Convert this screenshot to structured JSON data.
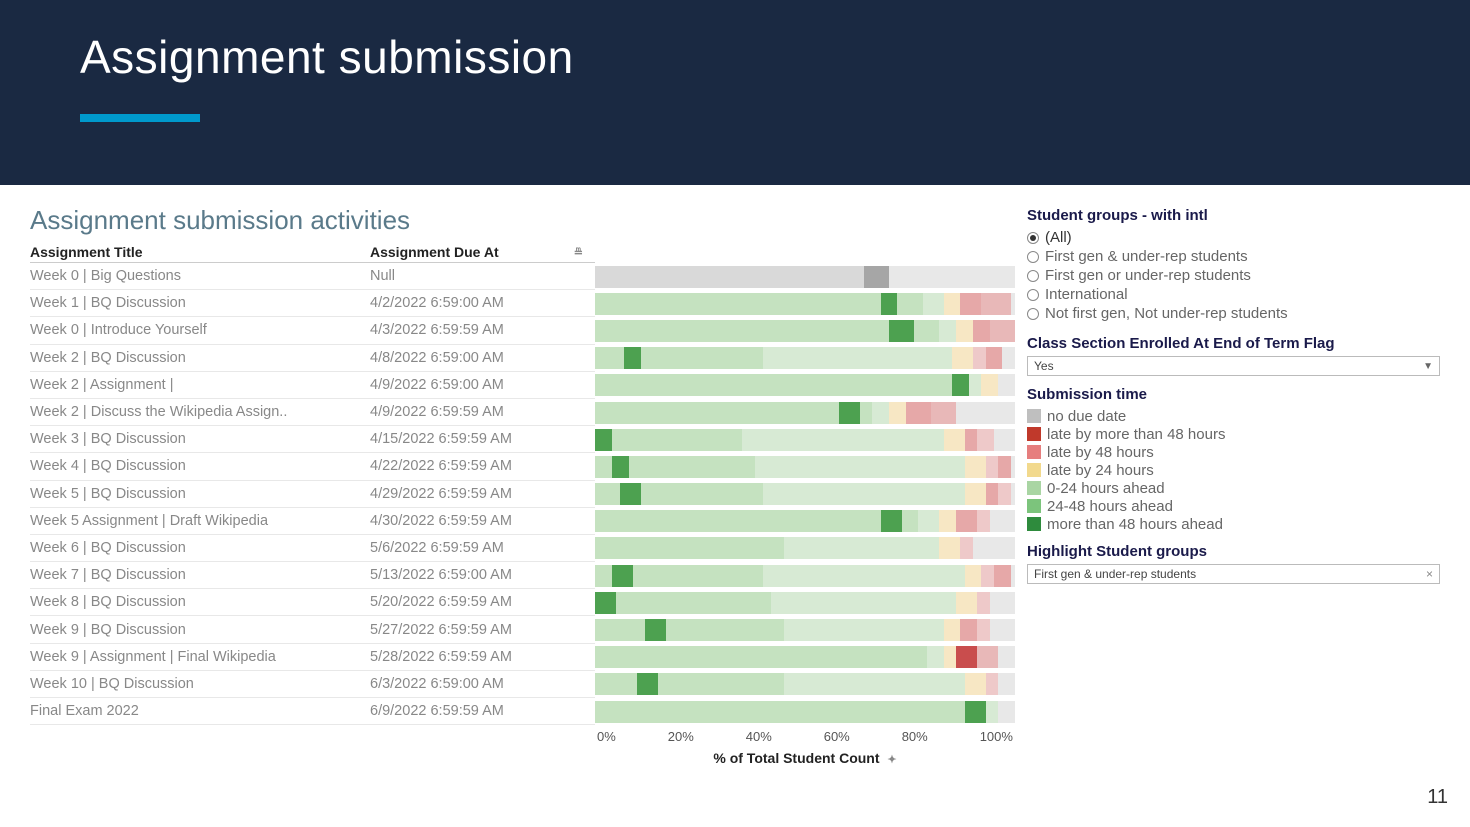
{
  "header": {
    "title": "Assignment submission",
    "accent_color": "#0099cc",
    "bg_color": "#1a2942"
  },
  "chart": {
    "title": "Assignment submission activities",
    "col1_header": "Assignment Title",
    "col2_header": "Assignment Due At",
    "axis_label": "% of Total Student Count",
    "x_ticks": [
      "0%",
      "20%",
      "40%",
      "60%",
      "80%",
      "100%"
    ],
    "track_bg": "#e8e8e8",
    "rows": [
      {
        "title": "Week 0 | Big Questions",
        "due": "Null",
        "segments": [
          {
            "key": "no_due",
            "start": 0,
            "end": 64
          },
          {
            "key": "no_due_dark",
            "start": 64,
            "end": 70
          }
        ]
      },
      {
        "title": "Week 1 | BQ Discussion",
        "due": "4/2/2022 6:59:00 AM",
        "segments": [
          {
            "key": "more48",
            "start": 0,
            "end": 68
          },
          {
            "key": "hi_more48",
            "start": 68,
            "end": 72
          },
          {
            "key": "a2448",
            "start": 72,
            "end": 78
          },
          {
            "key": "a024",
            "start": 78,
            "end": 83
          },
          {
            "key": "late24",
            "start": 83,
            "end": 87
          },
          {
            "key": "hi_late",
            "start": 87,
            "end": 92
          },
          {
            "key": "late48p",
            "start": 92,
            "end": 99
          }
        ]
      },
      {
        "title": "Week 0 | Introduce Yourself",
        "due": "4/3/2022 6:59:59 AM",
        "segments": [
          {
            "key": "more48",
            "start": 0,
            "end": 70
          },
          {
            "key": "hi_more48",
            "start": 70,
            "end": 76
          },
          {
            "key": "a2448",
            "start": 76,
            "end": 82
          },
          {
            "key": "a024",
            "start": 82,
            "end": 86
          },
          {
            "key": "late24",
            "start": 86,
            "end": 90
          },
          {
            "key": "hi_late",
            "start": 90,
            "end": 94
          },
          {
            "key": "late48p",
            "start": 94,
            "end": 100
          }
        ]
      },
      {
        "title": "Week 2 | BQ Discussion",
        "due": "4/8/2022 6:59:00 AM",
        "segments": [
          {
            "key": "more48",
            "start": 0,
            "end": 7
          },
          {
            "key": "hi_more48",
            "start": 7,
            "end": 11
          },
          {
            "key": "a2448",
            "start": 11,
            "end": 40
          },
          {
            "key": "a024",
            "start": 40,
            "end": 85
          },
          {
            "key": "late24",
            "start": 85,
            "end": 90
          },
          {
            "key": "late48",
            "start": 90,
            "end": 93
          },
          {
            "key": "hi_late",
            "start": 93,
            "end": 97
          }
        ]
      },
      {
        "title": "Week 2 | Assignment |",
        "due": "4/9/2022 6:59:00 AM",
        "segments": [
          {
            "key": "more48",
            "start": 0,
            "end": 85
          },
          {
            "key": "hi_more48",
            "start": 85,
            "end": 89
          },
          {
            "key": "a024",
            "start": 89,
            "end": 92
          },
          {
            "key": "late24",
            "start": 92,
            "end": 96
          }
        ]
      },
      {
        "title": "Week 2 | Discuss the Wikipedia Assign..",
        "due": "4/9/2022 6:59:59 AM",
        "segments": [
          {
            "key": "more48",
            "start": 0,
            "end": 58
          },
          {
            "key": "hi_more48",
            "start": 58,
            "end": 63
          },
          {
            "key": "a2448",
            "start": 63,
            "end": 66
          },
          {
            "key": "a024",
            "start": 66,
            "end": 70
          },
          {
            "key": "late24",
            "start": 70,
            "end": 74
          },
          {
            "key": "hi_late",
            "start": 74,
            "end": 80
          },
          {
            "key": "late48p",
            "start": 80,
            "end": 86
          }
        ]
      },
      {
        "title": "Week 3 | BQ Discussion",
        "due": "4/15/2022 6:59:59 AM",
        "segments": [
          {
            "key": "hi_more48",
            "start": 0,
            "end": 4
          },
          {
            "key": "more48",
            "start": 4,
            "end": 10
          },
          {
            "key": "a2448",
            "start": 10,
            "end": 35
          },
          {
            "key": "a024",
            "start": 35,
            "end": 83
          },
          {
            "key": "late24",
            "start": 83,
            "end": 88
          },
          {
            "key": "hi_late",
            "start": 88,
            "end": 91
          },
          {
            "key": "late48",
            "start": 91,
            "end": 95
          }
        ]
      },
      {
        "title": "Week 4 | BQ Discussion",
        "due": "4/22/2022 6:59:59 AM",
        "segments": [
          {
            "key": "more48",
            "start": 0,
            "end": 4
          },
          {
            "key": "hi_more48",
            "start": 4,
            "end": 8
          },
          {
            "key": "a2448",
            "start": 8,
            "end": 38
          },
          {
            "key": "a024",
            "start": 38,
            "end": 88
          },
          {
            "key": "late24",
            "start": 88,
            "end": 93
          },
          {
            "key": "late48",
            "start": 93,
            "end": 96
          },
          {
            "key": "hi_late",
            "start": 96,
            "end": 99
          }
        ]
      },
      {
        "title": "Week 5 | BQ Discussion",
        "due": "4/29/2022 6:59:59 AM",
        "segments": [
          {
            "key": "more48",
            "start": 0,
            "end": 6
          },
          {
            "key": "hi_more48",
            "start": 6,
            "end": 11
          },
          {
            "key": "a2448",
            "start": 11,
            "end": 40
          },
          {
            "key": "a024",
            "start": 40,
            "end": 88
          },
          {
            "key": "late24",
            "start": 88,
            "end": 93
          },
          {
            "key": "hi_late",
            "start": 93,
            "end": 96
          },
          {
            "key": "late48",
            "start": 96,
            "end": 99
          }
        ]
      },
      {
        "title": "Week 5 Assignment | Draft Wikipedia",
        "due": "4/30/2022 6:59:59 AM",
        "segments": [
          {
            "key": "more48",
            "start": 0,
            "end": 68
          },
          {
            "key": "hi_more48",
            "start": 68,
            "end": 73
          },
          {
            "key": "a2448",
            "start": 73,
            "end": 77
          },
          {
            "key": "a024",
            "start": 77,
            "end": 82
          },
          {
            "key": "late24",
            "start": 82,
            "end": 86
          },
          {
            "key": "hi_late",
            "start": 86,
            "end": 91
          },
          {
            "key": "late48",
            "start": 91,
            "end": 94
          }
        ]
      },
      {
        "title": "Week 6 | BQ Discussion",
        "due": "5/6/2022 6:59:59 AM",
        "segments": [
          {
            "key": "more48",
            "start": 0,
            "end": 15
          },
          {
            "key": "a2448",
            "start": 15,
            "end": 45
          },
          {
            "key": "a024",
            "start": 45,
            "end": 82
          },
          {
            "key": "late24",
            "start": 82,
            "end": 87
          },
          {
            "key": "late48",
            "start": 87,
            "end": 90
          }
        ]
      },
      {
        "title": "Week 7 | BQ Discussion",
        "due": "5/13/2022 6:59:00 AM",
        "segments": [
          {
            "key": "more48",
            "start": 0,
            "end": 4
          },
          {
            "key": "hi_more48",
            "start": 4,
            "end": 9
          },
          {
            "key": "a2448",
            "start": 9,
            "end": 40
          },
          {
            "key": "a024",
            "start": 40,
            "end": 88
          },
          {
            "key": "late24",
            "start": 88,
            "end": 92
          },
          {
            "key": "late48",
            "start": 92,
            "end": 95
          },
          {
            "key": "hi_late",
            "start": 95,
            "end": 99
          }
        ]
      },
      {
        "title": "Week 8 | BQ Discussion",
        "due": "5/20/2022 6:59:59 AM",
        "segments": [
          {
            "key": "hi_more48",
            "start": 0,
            "end": 5
          },
          {
            "key": "more48",
            "start": 5,
            "end": 12
          },
          {
            "key": "a2448",
            "start": 12,
            "end": 42
          },
          {
            "key": "a024",
            "start": 42,
            "end": 86
          },
          {
            "key": "late24",
            "start": 86,
            "end": 91
          },
          {
            "key": "late48",
            "start": 91,
            "end": 94
          }
        ]
      },
      {
        "title": "Week 9 | BQ Discussion",
        "due": "5/27/2022 6:59:59 AM",
        "segments": [
          {
            "key": "more48",
            "start": 0,
            "end": 12
          },
          {
            "key": "hi_more48",
            "start": 12,
            "end": 17
          },
          {
            "key": "a2448",
            "start": 17,
            "end": 45
          },
          {
            "key": "a024",
            "start": 45,
            "end": 83
          },
          {
            "key": "late24",
            "start": 83,
            "end": 87
          },
          {
            "key": "hi_late",
            "start": 87,
            "end": 91
          },
          {
            "key": "late48",
            "start": 91,
            "end": 94
          }
        ]
      },
      {
        "title": "Week 9 | Assignment | Final Wikipedia",
        "due": "5/28/2022 6:59:59 AM",
        "segments": [
          {
            "key": "more48",
            "start": 0,
            "end": 75
          },
          {
            "key": "a2448",
            "start": 75,
            "end": 79
          },
          {
            "key": "a024",
            "start": 79,
            "end": 83
          },
          {
            "key": "late24",
            "start": 83,
            "end": 86
          },
          {
            "key": "hi_late48p",
            "start": 86,
            "end": 91
          },
          {
            "key": "late48p",
            "start": 91,
            "end": 96
          }
        ]
      },
      {
        "title": "Week 10 | BQ Discussion",
        "due": "6/3/2022 6:59:00 AM",
        "segments": [
          {
            "key": "more48",
            "start": 0,
            "end": 10
          },
          {
            "key": "hi_more48",
            "start": 10,
            "end": 15
          },
          {
            "key": "a2448",
            "start": 15,
            "end": 45
          },
          {
            "key": "a024",
            "start": 45,
            "end": 88
          },
          {
            "key": "late24",
            "start": 88,
            "end": 93
          },
          {
            "key": "late48",
            "start": 93,
            "end": 96
          }
        ]
      },
      {
        "title": "Final Exam 2022",
        "due": "6/9/2022 6:59:59 AM",
        "segments": [
          {
            "key": "more48",
            "start": 0,
            "end": 88
          },
          {
            "key": "hi_more48",
            "start": 88,
            "end": 93
          },
          {
            "key": "a024",
            "start": 93,
            "end": 96
          }
        ]
      }
    ]
  },
  "colors": {
    "no_due": "#d9d9d9",
    "no_due_dark": "#a6a6a6",
    "late48p": "#e8b8b8",
    "hi_late48p": "#c94d4d",
    "late48": "#eec9c9",
    "late24": "#f7e7c4",
    "hi_late": "#e6a8a8",
    "a024": "#d7ead4",
    "a2448": "#c5e2c0",
    "more48": "#c5e2c0",
    "hi_more48": "#4da150"
  },
  "filters": {
    "student_groups": {
      "heading": "Student groups - with intl",
      "options": [
        {
          "label": "(All)",
          "selected": true
        },
        {
          "label": "First gen & under-rep students",
          "selected": false
        },
        {
          "label": "First gen or under-rep students",
          "selected": false
        },
        {
          "label": "International",
          "selected": false
        },
        {
          "label": "Not first gen, Not under-rep students",
          "selected": false
        }
      ]
    },
    "class_section": {
      "heading": "Class Section Enrolled At End of Term Flag",
      "value": "Yes"
    },
    "submission_time": {
      "heading": "Submission time",
      "items": [
        {
          "label": "no due date",
          "color": "#bfbfbf"
        },
        {
          "label": "late by more than 48 hours",
          "color": "#c0392b"
        },
        {
          "label": "late by 48 hours",
          "color": "#e67e7e"
        },
        {
          "label": "late by 24 hours",
          "color": "#f2d98d"
        },
        {
          "label": "0-24 hours ahead",
          "color": "#a9d5a3"
        },
        {
          "label": "24-48 hours ahead",
          "color": "#7cc47c"
        },
        {
          "label": "more than 48 hours ahead",
          "color": "#2e8b3d"
        }
      ]
    },
    "highlight": {
      "heading": "Highlight Student groups",
      "value": "First gen & under-rep students"
    }
  },
  "page_number": "11"
}
